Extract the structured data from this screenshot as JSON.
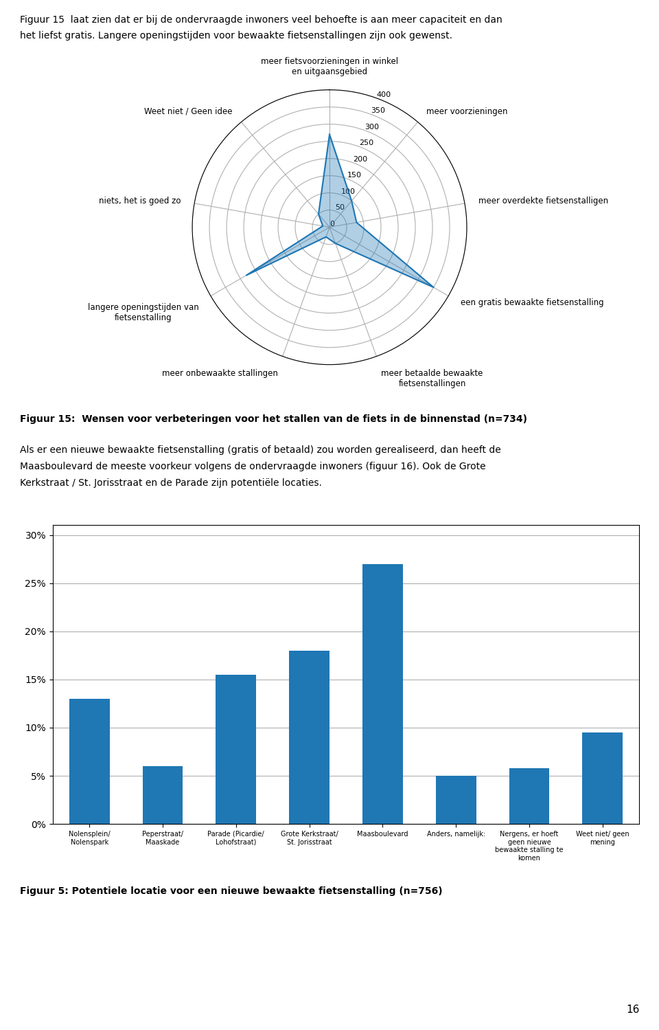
{
  "chart_data": [
    {
      "type": "radar",
      "title": "Figuur 15:  Wensen voor verbeteringen voor het stallen van de fiets in de binnenstad (n=734)",
      "categories": [
        "meer fietsvoorzieningen in winkel\nen uitgaansgebied",
        "meer voorzieningen",
        "meer overdekte fietsenstalligen",
        "een gratis bewaakte fietsenstalling",
        "meer betaalde bewaakte\nfietsenstallingen",
        "meer onbewaakte stallingen",
        "langere openingstijden van\nfietsenstalling",
        "niets, het is goed zo",
        "Weet niet / Geen idee"
      ],
      "values": [
        270,
        100,
        80,
        350,
        50,
        30,
        280,
        20,
        50
      ],
      "ylim": [
        0,
        400
      ],
      "yticks": [
        0,
        50,
        100,
        150,
        200,
        250,
        300,
        350,
        400
      ],
      "grid": true
    },
    {
      "type": "bar",
      "title": "Figuur 5: Potentiele locatie voor een nieuwe bewaakte fietsenstalling (n=756)",
      "categories": [
        "Nolensplein/\nNolenspark",
        "Peperstraat/\nMaaskade",
        "Parade (Picardie/\nLohofstraat)",
        "Grote Kerkstraat/\nSt. Jorisstraat",
        "Maasboulevard",
        "Anders, namelijk:",
        "Nergens, er hoeft\ngeen nieuwe\nbewaakte stalling te\nkomen",
        "Weet niet/ geen\nmening"
      ],
      "values": [
        0.13,
        0.06,
        0.155,
        0.18,
        0.27,
        0.05,
        0.058,
        0.095
      ],
      "ylim": [
        0,
        0.31
      ],
      "yticks": [
        {
          "value": 0,
          "label": "0%"
        },
        {
          "value": 0.05,
          "label": "5%"
        },
        {
          "value": 0.1,
          "label": "10%"
        },
        {
          "value": 0.15,
          "label": "15%"
        },
        {
          "value": 0.2,
          "label": "20%"
        },
        {
          "value": 0.25,
          "label": "25%"
        },
        {
          "value": 0.3,
          "label": "30%"
        }
      ],
      "grid": true
    }
  ],
  "page_text": {
    "top": [
      "Figuur 15  laat zien dat er bij de ondervraagde inwoners veel behoefte is aan meer capaciteit en dan",
      "het liefst gratis. Langere openingstijden voor bewaakte fietsenstallingen zijn ook gewenst."
    ],
    "body": [
      "Als er een nieuwe bewaakte fietsenstalling (gratis of betaald) zou worden gerealiseerd, dan heeft de",
      "Maasboulevard de meeste voorkeur volgens de ondervraagde inwoners (figuur 16). Ook de Grote",
      "Kerkstraat / St. Jorisstraat en de Parade zijn potentiële locaties."
    ],
    "page_number": "16"
  }
}
